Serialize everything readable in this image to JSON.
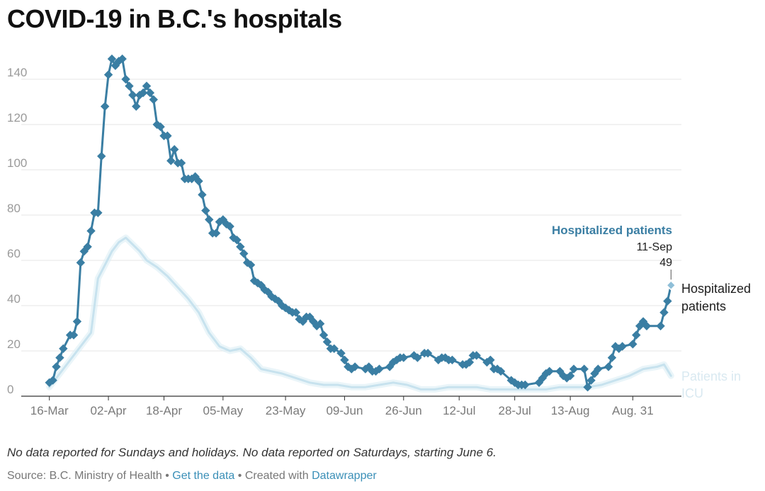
{
  "title": "COVID-19 in B.C.'s hospitals",
  "notes": "No data reported for Sundays and holidays. No data reported on Saturdays, starting June 6.",
  "footer": {
    "source": "Source: B.C. Ministry of Health",
    "separator": " • ",
    "get_data": "Get the data",
    "created_with": "Created with",
    "datawrapper": "Datawrapper"
  },
  "chart_data": {
    "type": "line",
    "x_tick_labels": [
      "16-Mar",
      "02-Apr",
      "18-Apr",
      "05-May",
      "23-May",
      "09-Jun",
      "26-Jun",
      "12-Jul",
      "28-Jul",
      "13-Aug",
      "Aug. 31"
    ],
    "x_tick_dates": [
      "2020-03-16",
      "2020-04-02",
      "2020-04-18",
      "2020-05-05",
      "2020-05-23",
      "2020-06-09",
      "2020-06-26",
      "2020-07-12",
      "2020-07-28",
      "2020-08-13",
      "2020-08-31"
    ],
    "x_range": [
      "2020-03-13",
      "2020-09-14"
    ],
    "y_ticks": [
      0,
      20,
      40,
      60,
      80,
      100,
      120,
      140
    ],
    "ylim": [
      0,
      150
    ],
    "grid": true,
    "series": [
      {
        "name": "Hospitalized patients",
        "color": "#3a7ea3",
        "markers": "diamond",
        "points": [
          [
            "2020-03-16",
            6
          ],
          [
            "2020-03-17",
            7
          ],
          [
            "2020-03-18",
            13
          ],
          [
            "2020-03-19",
            17
          ],
          [
            "2020-03-20",
            21
          ],
          [
            "2020-03-22",
            27
          ],
          [
            "2020-03-23",
            27
          ],
          [
            "2020-03-24",
            33
          ],
          [
            "2020-03-25",
            59
          ],
          [
            "2020-03-26",
            64
          ],
          [
            "2020-03-27",
            66
          ],
          [
            "2020-03-28",
            73
          ],
          [
            "2020-03-29",
            81
          ],
          [
            "2020-03-30",
            81
          ],
          [
            "2020-03-31",
            106
          ],
          [
            "2020-04-01",
            128
          ],
          [
            "2020-04-02",
            142
          ],
          [
            "2020-04-03",
            149
          ],
          [
            "2020-04-04",
            146
          ],
          [
            "2020-04-05",
            148
          ],
          [
            "2020-04-06",
            149
          ],
          [
            "2020-04-07",
            140
          ],
          [
            "2020-04-08",
            137
          ],
          [
            "2020-04-09",
            133
          ],
          [
            "2020-04-10",
            128
          ],
          [
            "2020-04-11",
            133
          ],
          [
            "2020-04-12",
            134
          ],
          [
            "2020-04-13",
            137
          ],
          [
            "2020-04-14",
            134
          ],
          [
            "2020-04-15",
            131
          ],
          [
            "2020-04-16",
            120
          ],
          [
            "2020-04-17",
            119
          ],
          [
            "2020-04-18",
            115
          ],
          [
            "2020-04-19",
            115
          ],
          [
            "2020-04-20",
            104
          ],
          [
            "2020-04-21",
            109
          ],
          [
            "2020-04-22",
            103
          ],
          [
            "2020-04-23",
            103
          ],
          [
            "2020-04-24",
            96
          ],
          [
            "2020-04-25",
            96
          ],
          [
            "2020-04-26",
            96
          ],
          [
            "2020-04-27",
            97
          ],
          [
            "2020-04-28",
            95
          ],
          [
            "2020-04-29",
            89
          ],
          [
            "2020-04-30",
            82
          ],
          [
            "2020-05-01",
            78
          ],
          [
            "2020-05-02",
            72
          ],
          [
            "2020-05-03",
            72
          ],
          [
            "2020-05-04",
            77
          ],
          [
            "2020-05-05",
            78
          ],
          [
            "2020-05-06",
            76
          ],
          [
            "2020-05-07",
            75
          ],
          [
            "2020-05-08",
            70
          ],
          [
            "2020-05-09",
            69
          ],
          [
            "2020-05-10",
            66
          ],
          [
            "2020-05-11",
            63
          ],
          [
            "2020-05-12",
            59
          ],
          [
            "2020-05-13",
            58
          ],
          [
            "2020-05-14",
            51
          ],
          [
            "2020-05-15",
            50
          ],
          [
            "2020-05-16",
            49
          ],
          [
            "2020-05-17",
            47
          ],
          [
            "2020-05-18",
            46
          ],
          [
            "2020-05-19",
            44
          ],
          [
            "2020-05-20",
            43
          ],
          [
            "2020-05-21",
            42
          ],
          [
            "2020-05-22",
            40
          ],
          [
            "2020-05-23",
            39
          ],
          [
            "2020-05-24",
            38
          ],
          [
            "2020-05-25",
            37
          ],
          [
            "2020-05-26",
            37
          ],
          [
            "2020-05-27",
            34
          ],
          [
            "2020-05-28",
            33
          ],
          [
            "2020-05-29",
            35
          ],
          [
            "2020-05-30",
            35
          ],
          [
            "2020-05-31",
            33
          ],
          [
            "2020-06-01",
            31
          ],
          [
            "2020-06-02",
            32
          ],
          [
            "2020-06-03",
            27
          ],
          [
            "2020-06-04",
            24
          ],
          [
            "2020-06-05",
            21
          ],
          [
            "2020-06-06",
            21
          ],
          [
            "2020-06-08",
            19
          ],
          [
            "2020-06-09",
            16
          ],
          [
            "2020-06-10",
            13
          ],
          [
            "2020-06-11",
            12
          ],
          [
            "2020-06-12",
            13
          ],
          [
            "2020-06-15",
            12
          ],
          [
            "2020-06-16",
            13
          ],
          [
            "2020-06-17",
            11
          ],
          [
            "2020-06-18",
            11
          ],
          [
            "2020-06-19",
            12
          ],
          [
            "2020-06-22",
            13
          ],
          [
            "2020-06-23",
            15
          ],
          [
            "2020-06-24",
            16
          ],
          [
            "2020-06-25",
            17
          ],
          [
            "2020-06-26",
            17
          ],
          [
            "2020-06-29",
            18
          ],
          [
            "2020-06-30",
            17
          ],
          [
            "2020-07-02",
            19
          ],
          [
            "2020-07-03",
            19
          ],
          [
            "2020-07-06",
            16
          ],
          [
            "2020-07-07",
            17
          ],
          [
            "2020-07-08",
            17
          ],
          [
            "2020-07-09",
            16
          ],
          [
            "2020-07-10",
            16
          ],
          [
            "2020-07-13",
            14
          ],
          [
            "2020-07-14",
            14
          ],
          [
            "2020-07-15",
            15
          ],
          [
            "2020-07-16",
            18
          ],
          [
            "2020-07-17",
            18
          ],
          [
            "2020-07-20",
            15
          ],
          [
            "2020-07-21",
            16
          ],
          [
            "2020-07-22",
            12
          ],
          [
            "2020-07-23",
            12
          ],
          [
            "2020-07-24",
            11
          ],
          [
            "2020-07-27",
            7
          ],
          [
            "2020-07-28",
            6
          ],
          [
            "2020-07-29",
            5
          ],
          [
            "2020-07-30",
            5
          ],
          [
            "2020-07-31",
            5
          ],
          [
            "2020-08-04",
            6
          ],
          [
            "2020-08-05",
            8
          ],
          [
            "2020-08-06",
            10
          ],
          [
            "2020-08-07",
            11
          ],
          [
            "2020-08-10",
            11
          ],
          [
            "2020-08-11",
            9
          ],
          [
            "2020-08-12",
            8
          ],
          [
            "2020-08-13",
            9
          ],
          [
            "2020-08-14",
            12
          ],
          [
            "2020-08-17",
            12
          ],
          [
            "2020-08-18",
            4
          ],
          [
            "2020-08-19",
            7
          ],
          [
            "2020-08-20",
            10
          ],
          [
            "2020-08-21",
            12
          ],
          [
            "2020-08-24",
            13
          ],
          [
            "2020-08-25",
            17
          ],
          [
            "2020-08-26",
            22
          ],
          [
            "2020-08-27",
            21
          ],
          [
            "2020-08-28",
            22
          ],
          [
            "2020-08-31",
            23
          ],
          [
            "2020-09-01",
            27
          ],
          [
            "2020-09-02",
            31
          ],
          [
            "2020-09-03",
            33
          ],
          [
            "2020-09-04",
            31
          ],
          [
            "2020-09-08",
            31
          ],
          [
            "2020-09-09",
            37
          ],
          [
            "2020-09-10",
            42
          ],
          [
            "2020-09-11",
            49
          ]
        ]
      },
      {
        "name": "Patients in ICU",
        "color": "#d9ecf4",
        "points": [
          [
            "2020-03-16",
            4
          ],
          [
            "2020-03-18",
            8
          ],
          [
            "2020-03-20",
            12
          ],
          [
            "2020-03-22",
            16
          ],
          [
            "2020-03-24",
            20
          ],
          [
            "2020-03-26",
            24
          ],
          [
            "2020-03-28",
            28
          ],
          [
            "2020-03-30",
            52
          ],
          [
            "2020-04-01",
            58
          ],
          [
            "2020-04-03",
            64
          ],
          [
            "2020-04-05",
            68
          ],
          [
            "2020-04-07",
            70
          ],
          [
            "2020-04-09",
            67
          ],
          [
            "2020-04-11",
            64
          ],
          [
            "2020-04-13",
            60
          ],
          [
            "2020-04-16",
            57
          ],
          [
            "2020-04-19",
            53
          ],
          [
            "2020-04-22",
            48
          ],
          [
            "2020-04-25",
            43
          ],
          [
            "2020-04-28",
            37
          ],
          [
            "2020-05-01",
            28
          ],
          [
            "2020-05-04",
            22
          ],
          [
            "2020-05-07",
            20
          ],
          [
            "2020-05-10",
            21
          ],
          [
            "2020-05-13",
            17
          ],
          [
            "2020-05-16",
            12
          ],
          [
            "2020-05-19",
            11
          ],
          [
            "2020-05-22",
            10
          ],
          [
            "2020-05-26",
            8
          ],
          [
            "2020-05-30",
            6
          ],
          [
            "2020-06-03",
            5
          ],
          [
            "2020-06-07",
            5
          ],
          [
            "2020-06-11",
            4
          ],
          [
            "2020-06-15",
            4
          ],
          [
            "2020-06-19",
            5
          ],
          [
            "2020-06-23",
            6
          ],
          [
            "2020-06-27",
            5
          ],
          [
            "2020-07-01",
            3
          ],
          [
            "2020-07-05",
            3
          ],
          [
            "2020-07-09",
            4
          ],
          [
            "2020-07-13",
            4
          ],
          [
            "2020-07-17",
            4
          ],
          [
            "2020-07-21",
            3
          ],
          [
            "2020-07-25",
            3
          ],
          [
            "2020-07-29",
            3
          ],
          [
            "2020-08-02",
            3
          ],
          [
            "2020-08-06",
            3
          ],
          [
            "2020-08-10",
            4
          ],
          [
            "2020-08-14",
            4
          ],
          [
            "2020-08-18",
            4
          ],
          [
            "2020-08-22",
            5
          ],
          [
            "2020-08-26",
            7
          ],
          [
            "2020-08-30",
            9
          ],
          [
            "2020-09-03",
            12
          ],
          [
            "2020-09-07",
            13
          ],
          [
            "2020-09-09",
            14
          ],
          [
            "2020-09-11",
            9
          ]
        ]
      }
    ],
    "annotation": {
      "series": "Hospitalized patients",
      "date_label": "11-Sep",
      "value": "49"
    },
    "end_labels": {
      "hospitalized": [
        "Hospitalized",
        "patients"
      ],
      "icu": [
        "Patients in",
        "ICU"
      ]
    }
  }
}
